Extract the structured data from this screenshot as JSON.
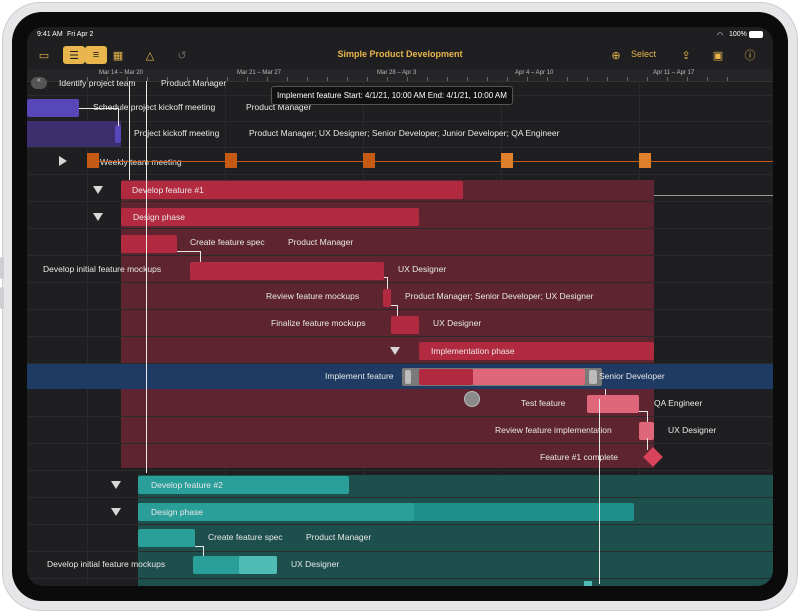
{
  "status": {
    "time": "9:41 AM",
    "date": "Fri Apr 2",
    "battery": "100%"
  },
  "toolbar": {
    "title": "Simple Product Development",
    "select": "Select"
  },
  "timeline": [
    "Mar 14 – Mar 20",
    "Mar 21 – Mar 27",
    "Mar 28 – Apr 3",
    "Apr 4 – Apr 10",
    "Apr 11 – Apr 17"
  ],
  "tooltip": "Implement feature    Start: 4/1/21, 10:00 AM    End: 4/1/21, 10:00 AM",
  "tasks": {
    "identify": {
      "name": "Identify project team",
      "res": "Product Manager"
    },
    "schedule": {
      "name": "Schedule project kickoff meeting",
      "res": "Product Manager"
    },
    "kickoff": {
      "name": "Project kickoff meeting",
      "res": "Product Manager; UX Designer; Senior Developer; Junior Developer; QA Engineer"
    },
    "weekly": {
      "name": "Weekly team meeting"
    },
    "f1": {
      "name": "Develop feature #1"
    },
    "f1design": {
      "name": "Design phase"
    },
    "f1spec": {
      "name": "Create feature spec",
      "res": "Product Manager"
    },
    "f1mock": {
      "name": "Develop initial feature mockups",
      "res": "UX Designer"
    },
    "f1review": {
      "name": "Review feature mockups",
      "res": "Product Manager; Senior Developer; UX Designer"
    },
    "f1final": {
      "name": "Finalize feature mockups",
      "res": "UX Designer"
    },
    "f1impl": {
      "name": "Implementation phase"
    },
    "f1implement": {
      "name": "Implement feature",
      "res": "Senior Developer"
    },
    "f1test": {
      "name": "Test feature",
      "res": "QA Engineer"
    },
    "f1reviewimpl": {
      "name": "Review feature implementation",
      "res": "UX Designer"
    },
    "f1complete": {
      "name": "Feature #1 complete"
    },
    "f2": {
      "name": "Develop feature #2"
    },
    "f2design": {
      "name": "Design phase"
    },
    "f2spec": {
      "name": "Create feature spec",
      "res": "Product Manager"
    },
    "f2mock": {
      "name": "Develop initial feature mockups",
      "res": "UX Designer"
    }
  }
}
